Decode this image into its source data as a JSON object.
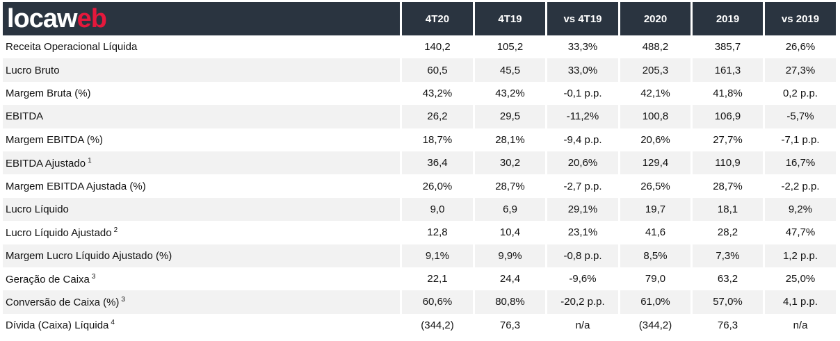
{
  "logo": {
    "part1": "locaw",
    "part2": "eb"
  },
  "headers": [
    "4T20",
    "4T19",
    "vs 4T19",
    "2020",
    "2019",
    "vs 2019"
  ],
  "rows": [
    {
      "label": "Receita Operacional Líquida",
      "note": "",
      "values": [
        "140,2",
        "105,2",
        "33,3%",
        "488,2",
        "385,7",
        "26,6%"
      ]
    },
    {
      "label": "Lucro Bruto",
      "note": "",
      "values": [
        "60,5",
        "45,5",
        "33,0%",
        "205,3",
        "161,3",
        "27,3%"
      ]
    },
    {
      "label": "Margem Bruta (%)",
      "note": "",
      "values": [
        "43,2%",
        "43,2%",
        "-0,1 p.p.",
        "42,1%",
        "41,8%",
        "0,2 p.p."
      ]
    },
    {
      "label": "EBITDA",
      "note": "",
      "values": [
        "26,2",
        "29,5",
        "-11,2%",
        "100,8",
        "106,9",
        "-5,7%"
      ]
    },
    {
      "label": "Margem EBITDA (%)",
      "note": "",
      "values": [
        "18,7%",
        "28,1%",
        "-9,4 p.p.",
        "20,6%",
        "27,7%",
        "-7,1 p.p."
      ]
    },
    {
      "label": "EBITDA Ajustado",
      "note": "1",
      "values": [
        "36,4",
        "30,2",
        "20,6%",
        "129,4",
        "110,9",
        "16,7%"
      ]
    },
    {
      "label": "Margem EBITDA Ajustada (%)",
      "note": "",
      "values": [
        "26,0%",
        "28,7%",
        "-2,7 p.p.",
        "26,5%",
        "28,7%",
        "-2,2 p.p."
      ]
    },
    {
      "label": "Lucro Líquido",
      "note": "",
      "values": [
        "9,0",
        "6,9",
        "29,1%",
        "19,7",
        "18,1",
        "9,2%"
      ]
    },
    {
      "label": "Lucro Líquido Ajustado",
      "note": "2",
      "values": [
        "12,8",
        "10,4",
        "23,1%",
        "41,6",
        "28,2",
        "47,7%"
      ]
    },
    {
      "label": "Margem Lucro Líquido Ajustado (%)",
      "note": "",
      "values": [
        "9,1%",
        "9,9%",
        "-0,8 p.p.",
        "8,5%",
        "7,3%",
        "1,2 p.p."
      ]
    },
    {
      "label": "Geração de Caixa",
      "note": "3",
      "values": [
        "22,1",
        "24,4",
        "-9,6%",
        "79,0",
        "63,2",
        "25,0%"
      ]
    },
    {
      "label": "Conversão de Caixa (%)",
      "note": "3",
      "values": [
        "60,6%",
        "80,8%",
        "-20,2 p.p.",
        "61,0%",
        "57,0%",
        "4,1 p.p."
      ]
    },
    {
      "label": "Dívida (Caixa) Líquida",
      "note": "4",
      "values": [
        "(344,2)",
        "76,3",
        "n/a",
        "(344,2)",
        "76,3",
        "n/a"
      ]
    }
  ]
}
